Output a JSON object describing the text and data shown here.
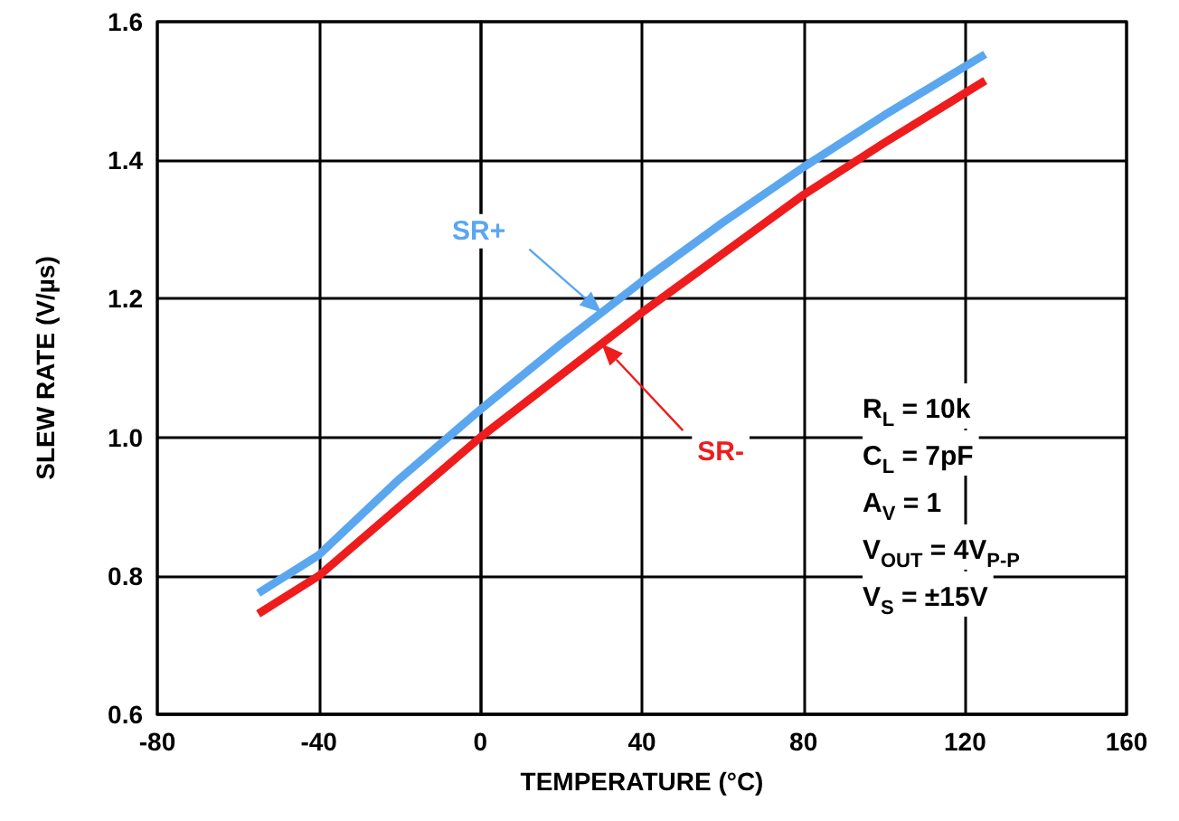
{
  "chart_data": {
    "type": "line",
    "xlabel": "TEMPERATURE (°C)",
    "ylabel": "SLEW RATE (V/µs)",
    "x": [
      -55,
      -40,
      -20,
      0,
      20,
      40,
      60,
      80,
      100,
      125
    ],
    "series": [
      {
        "name": "SR+",
        "color": "#5aa7f0",
        "values": [
          0.775,
          0.83,
          0.94,
          1.04,
          1.135,
          1.225,
          1.31,
          1.39,
          1.465,
          1.553
        ]
      },
      {
        "name": "SR-",
        "color": "#ee1c1c",
        "values": [
          0.745,
          0.8,
          0.9,
          1.0,
          1.09,
          1.18,
          1.265,
          1.35,
          1.425,
          1.515
        ]
      }
    ],
    "xlim": [
      -80,
      160
    ],
    "xticks": [
      -80,
      -40,
      0,
      40,
      80,
      120,
      160
    ],
    "ylim": [
      0.6,
      1.6
    ],
    "yticks": [
      0.6,
      0.8,
      {
        "value": 1,
        "label": "1.0"
      },
      1.2,
      1.4,
      1.6
    ],
    "grid": true,
    "marker": "none",
    "line_style": "solid",
    "annotations": [
      "R$_{L}$ = 10k",
      "C$_{L}$ = 7pF",
      "A$_{V}$ = 1",
      "V$_{OUT}$ = 4V$_{P-P}$",
      "V$_{S}$ = ±15V"
    ]
  }
}
